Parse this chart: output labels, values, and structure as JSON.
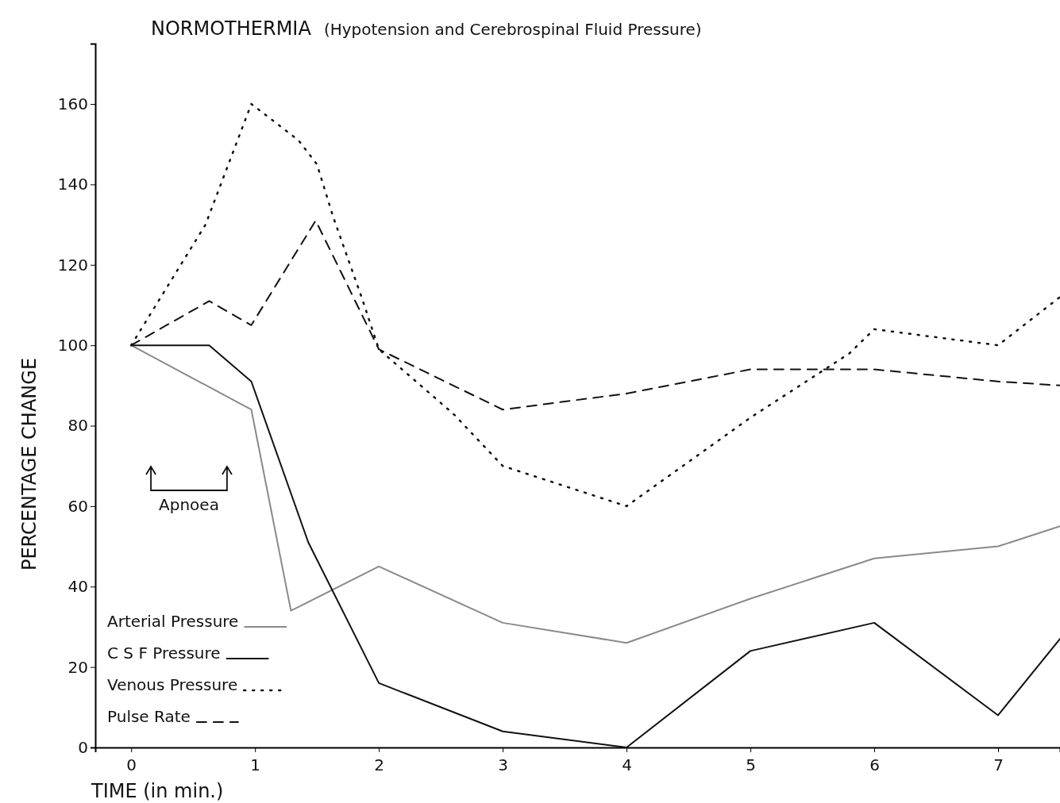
{
  "chart_data": {
    "type": "line",
    "title": "NORMOTHERMIA",
    "subtitle": "(Hypotension and Cerebrospinal Fluid Pressure)",
    "xlabel": "TIME (in min.)",
    "ylabel": "PERCENTAGE CHANGE",
    "xlim": [
      -0.29,
      7.5
    ],
    "xticks": [
      0,
      1,
      2,
      3,
      4,
      5,
      6,
      7
    ],
    "ylim": [
      0,
      175
    ],
    "yticks": [
      0,
      20,
      40,
      60,
      80,
      100,
      120,
      140,
      160
    ],
    "grid": false,
    "legend": "bottom left",
    "marker": "none",
    "annotations": [
      "Apnoea"
    ],
    "series": [
      {
        "name": "Arterial Pressure",
        "color": "#8a8a8a",
        "line_style": "solid",
        "x": [
          0,
          0.97,
          1.29,
          2,
          3,
          4,
          5,
          6,
          7,
          7.5
        ],
        "values": [
          100,
          84,
          34,
          45,
          31,
          26,
          37,
          47,
          50,
          55
        ]
      },
      {
        "name": "C S F Pressure",
        "color": "#111111",
        "line_style": "solid",
        "x": [
          0,
          0.63,
          0.97,
          1.43,
          2,
          3,
          4,
          5,
          6,
          7,
          7.5
        ],
        "values": [
          100,
          100,
          91,
          51,
          16,
          4,
          0,
          24,
          31,
          8,
          27
        ]
      },
      {
        "name": "Venous Pressure",
        "color": "#111111",
        "line_style": "dotted",
        "x": [
          0,
          0.22,
          0.6,
          0.97,
          1.35,
          1.5,
          1.63,
          1.86,
          2,
          2.6,
          3,
          4,
          5,
          5.8,
          6,
          7,
          7.5
        ],
        "values": [
          100,
          111,
          130,
          160,
          151,
          145,
          132,
          112,
          99,
          83,
          70,
          60,
          82,
          98,
          104,
          100,
          112
        ]
      },
      {
        "name": "Pulse Rate",
        "color": "#111111",
        "line_style": "dashed",
        "x": [
          0,
          0.63,
          0.97,
          1.49,
          2,
          3,
          4,
          5,
          6,
          7,
          7.5
        ],
        "values": [
          100,
          111,
          105,
          131,
          99,
          84,
          88,
          94,
          94,
          91,
          90
        ]
      }
    ]
  }
}
